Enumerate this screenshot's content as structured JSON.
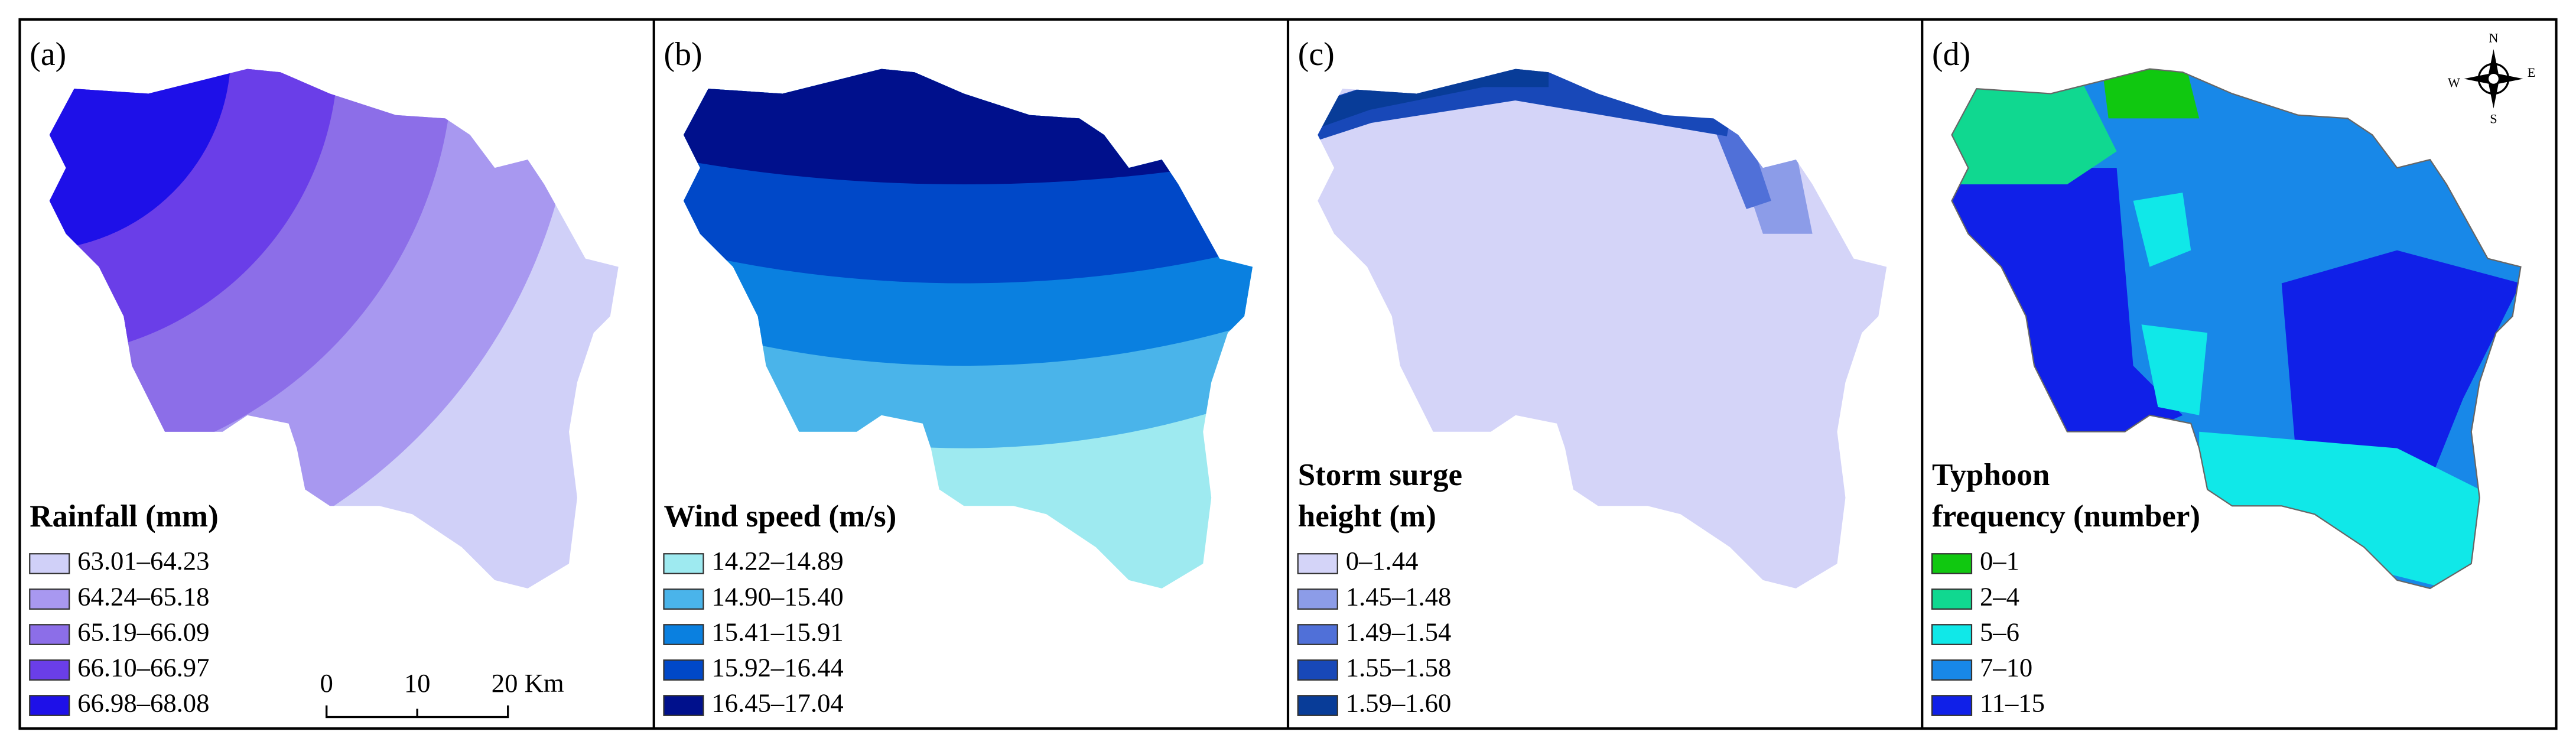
{
  "panels": [
    {
      "label": "(a)",
      "legend_title": [
        "Rainfall (mm)"
      ],
      "legend": [
        {
          "label": "63.01–64.23",
          "color": "#d0d0f8"
        },
        {
          "label": "64.24–65.18",
          "color": "#a898f0"
        },
        {
          "label": "65.19–66.09",
          "color": "#8c6ee8"
        },
        {
          "label": "66.10–66.97",
          "color": "#6a3ee8"
        },
        {
          "label": "66.98–68.08",
          "color": "#1e10e8"
        }
      ]
    },
    {
      "label": "(b)",
      "legend_title": [
        "Wind speed (m/s)"
      ],
      "legend": [
        {
          "label": "14.22–14.89",
          "color": "#9eeaf0"
        },
        {
          "label": "14.90–15.40",
          "color": "#4ab4ea"
        },
        {
          "label": "15.41–15.91",
          "color": "#0a80e0"
        },
        {
          "label": "15.92–16.44",
          "color": "#0048c8"
        },
        {
          "label": "16.45–17.04",
          "color": "#00108c"
        }
      ]
    },
    {
      "label": "(c)",
      "legend_title": [
        "Storm surge",
        "height (m)"
      ],
      "legend": [
        {
          "label": "0–1.44",
          "color": "#d4d4f8"
        },
        {
          "label": "1.45–1.48",
          "color": "#8c9ce8"
        },
        {
          "label": "1.49–1.54",
          "color": "#5070d8"
        },
        {
          "label": "1.55–1.58",
          "color": "#1848b8"
        },
        {
          "label": "1.59–1.60",
          "color": "#083c98"
        }
      ]
    },
    {
      "label": "(d)",
      "legend_title": [
        "Typhoon",
        "frequency (number)"
      ],
      "legend": [
        {
          "label": "0–1",
          "color": "#10c810"
        },
        {
          "label": "2–4",
          "color": "#10d890"
        },
        {
          "label": "5–6",
          "color": "#10e8e8"
        },
        {
          "label": "7–10",
          "color": "#1888e8"
        },
        {
          "label": "11–15",
          "color": "#1020e8"
        }
      ]
    }
  ],
  "scale_bar": {
    "labels": [
      "0",
      "10",
      "20 Km"
    ]
  },
  "compass": {
    "north": "N",
    "south": "S",
    "east": "E",
    "west": "W"
  }
}
